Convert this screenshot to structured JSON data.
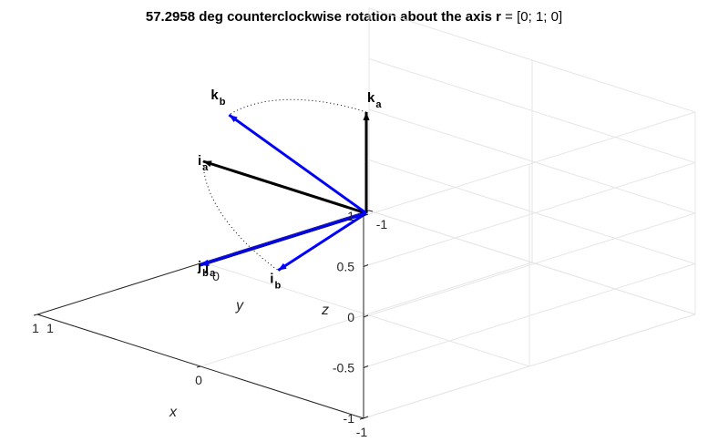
{
  "chart_data": {
    "type": "3d-vector-plot",
    "title": {
      "prefix": "57.2958 deg counterclockwise rotation about the axis ",
      "axis_symbol": "r",
      "suffix": " = [0; 1; 0]"
    },
    "rotation_angle_deg": 57.2958,
    "rotation_axis": [
      0,
      1,
      0
    ],
    "axes": {
      "x": {
        "label": "x",
        "lim": [
          -1,
          1
        ],
        "ticks": [
          -1,
          0,
          1
        ],
        "tick_labels": [
          "-1",
          "0",
          "1"
        ]
      },
      "y": {
        "label": "y",
        "lim": [
          -1,
          1
        ],
        "ticks": [
          -1,
          0,
          1
        ],
        "tick_labels": [
          "-1",
          "0",
          "1"
        ]
      },
      "z": {
        "label": "z",
        "lim": [
          -1,
          1
        ],
        "ticks": [
          -1,
          -0.5,
          0,
          0.5,
          1
        ],
        "tick_labels": [
          "-1",
          "-0.5",
          "0",
          "0.5",
          "1"
        ]
      }
    },
    "grid": true,
    "vectors": [
      {
        "name": "i",
        "frame": "a",
        "components": [
          1,
          0,
          0
        ],
        "color": "#000000"
      },
      {
        "name": "j",
        "frame": "a",
        "components": [
          0,
          1,
          0
        ],
        "color": "#000000"
      },
      {
        "name": "k",
        "frame": "a",
        "components": [
          0,
          0,
          1
        ],
        "color": "#000000"
      },
      {
        "name": "i",
        "frame": "b",
        "components": [
          0.5403,
          0,
          -0.8415
        ],
        "color": "#0000ff"
      },
      {
        "name": "j",
        "frame": "b",
        "components": [
          0,
          1,
          0
        ],
        "color": "#0000ff"
      },
      {
        "name": "k",
        "frame": "b",
        "components": [
          0.8415,
          0,
          0.5403
        ],
        "color": "#0000ff"
      }
    ],
    "arcs": [
      {
        "from": "k_a",
        "to": "k_b",
        "style": "dotted"
      },
      {
        "from": "i_a",
        "to": "i_b",
        "style": "dotted"
      }
    ]
  }
}
